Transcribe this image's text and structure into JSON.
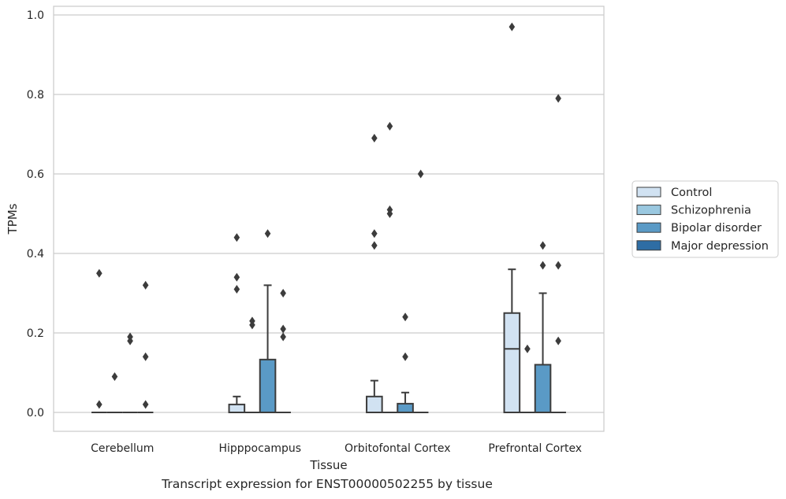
{
  "caption": "Transcript expression for ENST00000502255 by tissue",
  "chart_data": {
    "type": "box",
    "xlabel": "Tissue",
    "ylabel": "TPMs",
    "ylim": [
      -0.048,
      1.02
    ],
    "yticks": [
      "0.0",
      "0.2",
      "0.4",
      "0.6",
      "0.8",
      "1.0"
    ],
    "grid": true,
    "legend_position": "right",
    "categories": [
      "Cerebellum",
      "Hipppocampus",
      "Orbitofontal Cortex",
      "Prefrontal Cortex"
    ],
    "series": [
      {
        "name": "Control",
        "color": "#d1e2f2",
        "boxes": [
          {
            "q1": 0,
            "median": 0,
            "q3": 0,
            "whislo": 0,
            "whishi": 0,
            "fliers": [
              0.35,
              0.02
            ]
          },
          {
            "q1": 0,
            "median": 0,
            "q3": 0.02,
            "whislo": 0,
            "whishi": 0.04,
            "fliers": [
              0.44,
              0.34,
              0.31
            ]
          },
          {
            "q1": 0,
            "median": 0,
            "q3": 0.04,
            "whislo": 0,
            "whishi": 0.08,
            "fliers": [
              0.69,
              0.45,
              0.42
            ]
          },
          {
            "q1": 0,
            "median": 0.16,
            "q3": 0.25,
            "whislo": 0,
            "whishi": 0.36,
            "fliers": [
              0.97
            ]
          }
        ]
      },
      {
        "name": "Schizophrenia",
        "color": "#9ac8e0",
        "boxes": [
          {
            "q1": 0,
            "median": 0,
            "q3": 0,
            "whislo": 0,
            "whishi": 0,
            "fliers": [
              0.09
            ]
          },
          {
            "q1": 0,
            "median": 0,
            "q3": 0,
            "whislo": 0,
            "whishi": 0,
            "fliers": [
              0.23,
              0.22
            ]
          },
          {
            "q1": 0,
            "median": 0,
            "q3": 0,
            "whislo": 0,
            "whishi": 0,
            "fliers": [
              0.72,
              0.51,
              0.5
            ]
          },
          {
            "q1": 0,
            "median": 0,
            "q3": 0,
            "whislo": 0,
            "whishi": 0,
            "fliers": [
              0.16
            ]
          }
        ]
      },
      {
        "name": "Bipolar disorder",
        "color": "#5a9ac6",
        "boxes": [
          {
            "q1": 0,
            "median": 0,
            "q3": 0,
            "whislo": 0,
            "whishi": 0,
            "fliers": [
              0.19,
              0.18
            ]
          },
          {
            "q1": 0,
            "median": 0,
            "q3": 0.133,
            "whislo": 0,
            "whishi": 0.32,
            "fliers": [
              0.45
            ]
          },
          {
            "q1": 0,
            "median": 0,
            "q3": 0.022,
            "whislo": 0,
            "whishi": 0.05,
            "fliers": [
              0.24,
              0.14
            ]
          },
          {
            "q1": 0,
            "median": 0,
            "q3": 0.12,
            "whislo": 0,
            "whishi": 0.3,
            "fliers": [
              0.42,
              0.37
            ]
          }
        ]
      },
      {
        "name": "Major depression",
        "color": "#2e6da4",
        "boxes": [
          {
            "q1": 0,
            "median": 0,
            "q3": 0,
            "whislo": 0,
            "whishi": 0,
            "fliers": [
              0.32,
              0.14,
              0.02
            ]
          },
          {
            "q1": 0,
            "median": 0,
            "q3": 0,
            "whislo": 0,
            "whishi": 0,
            "fliers": [
              0.3,
              0.21,
              0.19
            ]
          },
          {
            "q1": 0,
            "median": 0,
            "q3": 0,
            "whislo": 0,
            "whishi": 0,
            "fliers": [
              0.6
            ]
          },
          {
            "q1": 0,
            "median": 0,
            "q3": 0,
            "whislo": 0,
            "whishi": 0,
            "fliers": [
              0.79,
              0.37,
              0.18
            ]
          }
        ]
      }
    ]
  }
}
